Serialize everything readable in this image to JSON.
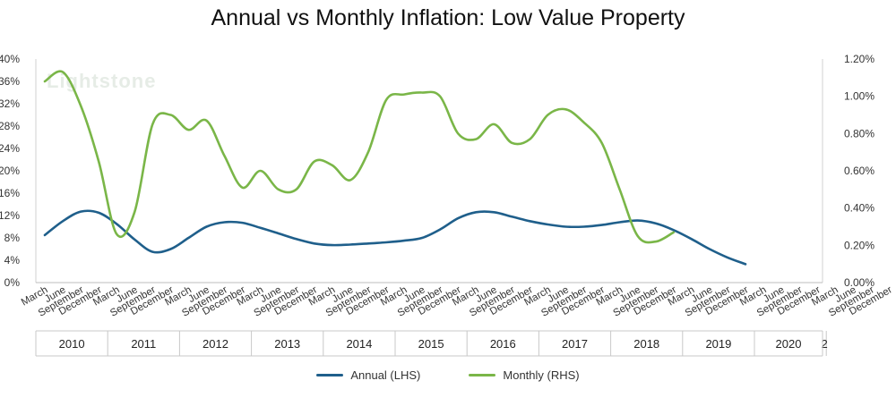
{
  "chart_data": {
    "type": "line",
    "title": "Annual vs Monthly Inflation: Low Value Property",
    "watermark": "Lightstone",
    "x_labels": [
      "March",
      "June",
      "September",
      "December",
      "March",
      "June",
      "September",
      "December",
      "March",
      "June",
      "September",
      "December",
      "March",
      "June",
      "September",
      "December",
      "March",
      "June",
      "September",
      "December",
      "March",
      "June",
      "September",
      "December",
      "March",
      "June",
      "September",
      "December",
      "March",
      "June",
      "September",
      "December",
      "March",
      "June",
      "September",
      "December",
      "March",
      "June",
      "September",
      "December",
      "March",
      "June",
      "September",
      "December",
      "March",
      "June",
      "September",
      "December"
    ],
    "years": [
      "2010",
      "2011",
      "2012",
      "2013",
      "2014",
      "2015",
      "2016",
      "2017",
      "2018",
      "2019",
      "2020",
      "2"
    ],
    "y_left": {
      "ticks": [
        "0%",
        "4%",
        "8%",
        "12%",
        "16%",
        "20%",
        "24%",
        "28%",
        "32%",
        "36%",
        "40%"
      ],
      "range": [
        0,
        40
      ]
    },
    "y_right": {
      "ticks": [
        "0.00%",
        "0.20%",
        "0.40%",
        "0.60%",
        "0.80%",
        "1.00%",
        "1.20%"
      ],
      "range": [
        0,
        1.2
      ]
    },
    "series": [
      {
        "name": "Annual (LHS)",
        "axis": "left",
        "color": "#1f5f8b",
        "values": [
          8.5,
          11.0,
          12.7,
          12.5,
          10.5,
          7.7,
          5.5,
          6.0,
          8.0,
          10.0,
          10.8,
          10.7,
          9.8,
          8.8,
          7.8,
          7.0,
          6.7,
          6.8,
          7.0,
          7.2,
          7.5,
          8.0,
          9.5,
          11.5,
          12.6,
          12.6,
          11.8,
          11.0,
          10.4,
          10.0,
          10.0,
          10.3,
          10.8,
          11.1,
          10.6,
          9.4,
          7.8,
          6.0,
          4.5,
          3.3
        ]
      },
      {
        "name": "Monthly (RHS)",
        "axis": "right",
        "color": "#7ab648",
        "values": [
          1.08,
          1.13,
          0.95,
          0.65,
          0.26,
          0.38,
          0.85,
          0.9,
          0.82,
          0.87,
          0.68,
          0.51,
          0.6,
          0.5,
          0.5,
          0.65,
          0.63,
          0.55,
          0.7,
          0.98,
          1.01,
          1.02,
          1.0,
          0.8,
          0.77,
          0.85,
          0.75,
          0.77,
          0.9,
          0.93,
          0.86,
          0.75,
          0.5,
          0.25,
          0.22,
          0.27
        ]
      }
    ]
  }
}
